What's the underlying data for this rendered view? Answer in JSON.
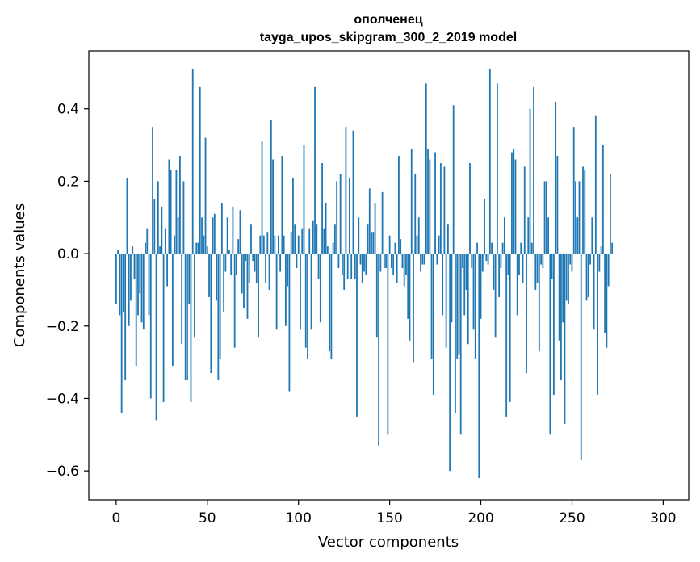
{
  "chart_data": {
    "type": "bar",
    "title": "ополченец",
    "subtitle": "tayga_upos_skipgram_300_2_2019 model",
    "xlabel": "Vector components",
    "ylabel": "Components values",
    "xlim": [
      -15,
      314
    ],
    "ylim": [
      -0.68,
      0.56
    ],
    "x_ticks": [
      0,
      50,
      100,
      150,
      200,
      250,
      300
    ],
    "x_tick_labels": [
      "0",
      "50",
      "100",
      "150",
      "200",
      "250",
      "300"
    ],
    "y_ticks": [
      -0.6,
      -0.4,
      -0.2,
      0.0,
      0.2,
      0.4
    ],
    "y_tick_labels": [
      "−0.6",
      "−0.4",
      "−0.2",
      "0.0",
      "0.2",
      "0.4"
    ],
    "bar_color": "#1f77b4",
    "series": [
      {
        "name": "components",
        "values": [
          -0.14,
          0.01,
          -0.17,
          -0.44,
          -0.16,
          -0.35,
          0.21,
          -0.2,
          -0.13,
          0.02,
          -0.07,
          -0.31,
          -0.17,
          -0.11,
          -0.19,
          -0.21,
          0.03,
          0.07,
          -0.17,
          -0.4,
          0.35,
          0.15,
          -0.46,
          0.2,
          0.02,
          0.13,
          -0.41,
          0.07,
          -0.09,
          0.26,
          0.23,
          -0.31,
          0.05,
          0.23,
          0.1,
          0.27,
          -0.25,
          0.2,
          -0.35,
          -0.35,
          -0.14,
          -0.41,
          0.51,
          -0.23,
          0.03,
          0.03,
          0.46,
          0.1,
          0.05,
          0.32,
          0.02,
          -0.12,
          -0.33,
          0.1,
          0.11,
          -0.13,
          -0.35,
          -0.29,
          0.14,
          -0.16,
          -0.05,
          0.1,
          0.01,
          -0.06,
          0.13,
          -0.26,
          -0.06,
          0.04,
          0.12,
          -0.11,
          -0.15,
          -0.02,
          -0.18,
          -0.08,
          0.08,
          -0.02,
          -0.05,
          -0.08,
          -0.23,
          0.05,
          0.31,
          0.05,
          -0.08,
          0.06,
          -0.1,
          0.37,
          0.26,
          0.05,
          -0.21,
          0.05,
          -0.05,
          0.27,
          0.05,
          -0.2,
          -0.09,
          -0.38,
          0.06,
          0.21,
          0.08,
          -0.04,
          0.05,
          -0.21,
          0.07,
          0.3,
          -0.26,
          -0.29,
          0.07,
          -0.21,
          0.09,
          0.46,
          0.08,
          -0.07,
          -0.19,
          0.25,
          0.07,
          0.14,
          0.02,
          -0.27,
          -0.29,
          0.03,
          0.08,
          0.2,
          -0.04,
          0.22,
          -0.06,
          -0.1,
          0.35,
          -0.07,
          0.21,
          -0.07,
          0.34,
          -0.07,
          -0.45,
          0.1,
          -0.03,
          -0.08,
          -0.05,
          -0.06,
          0.08,
          0.18,
          0.06,
          0.06,
          0.14,
          -0.23,
          -0.53,
          -0.05,
          0.17,
          -0.04,
          -0.04,
          -0.5,
          0.05,
          -0.04,
          -0.06,
          0.03,
          -0.08,
          0.27,
          0.04,
          -0.04,
          -0.09,
          -0.06,
          -0.18,
          -0.24,
          0.29,
          -0.3,
          0.22,
          0.05,
          0.1,
          -0.05,
          -0.03,
          -0.03,
          0.47,
          0.29,
          0.26,
          -0.29,
          -0.39,
          0.28,
          -0.03,
          0.05,
          0.25,
          -0.17,
          0.24,
          -0.26,
          0.08,
          -0.6,
          -0.19,
          0.41,
          -0.44,
          -0.29,
          -0.28,
          -0.5,
          -0.04,
          -0.17,
          -0.1,
          -0.25,
          0.25,
          -0.04,
          -0.21,
          -0.29,
          0.03,
          -0.62,
          -0.18,
          -0.05,
          0.15,
          -0.02,
          -0.03,
          0.51,
          0.03,
          -0.1,
          -0.23,
          0.47,
          -0.12,
          -0.04,
          0.03,
          0.1,
          -0.45,
          -0.06,
          -0.41,
          0.28,
          0.29,
          0.26,
          -0.17,
          -0.06,
          0.03,
          -0.08,
          0.24,
          -0.33,
          0.1,
          0.4,
          0.03,
          0.46,
          -0.1,
          -0.08,
          -0.27,
          -0.03,
          -0.04,
          0.2,
          0.2,
          0.1,
          -0.5,
          -0.07,
          -0.39,
          0.42,
          0.27,
          -0.24,
          -0.35,
          -0.19,
          -0.47,
          -0.13,
          -0.14,
          -0.03,
          -0.05,
          0.35,
          0.2,
          0.1,
          0.2,
          -0.57,
          0.24,
          0.23,
          -0.13,
          -0.12,
          -0.03,
          0.1,
          -0.21,
          0.38,
          -0.39,
          -0.05,
          0.02,
          0.3,
          -0.22,
          -0.26,
          -0.09,
          0.22,
          0.03
        ]
      }
    ]
  }
}
